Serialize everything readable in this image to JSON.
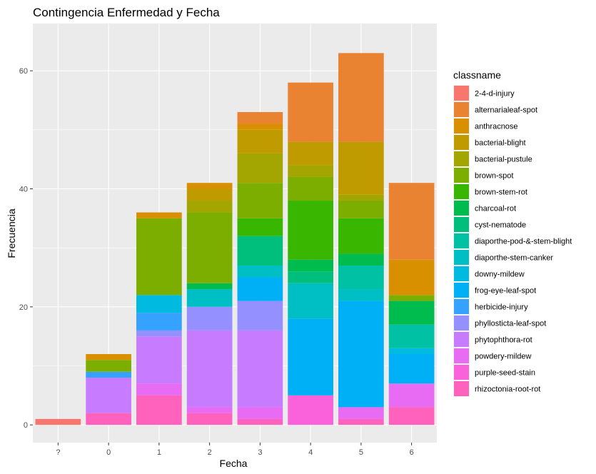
{
  "chart_data": {
    "type": "bar",
    "stacked": true,
    "title": "Contingencia Enfermedad y Fecha",
    "xlabel": "Fecha",
    "ylabel": "Frecuencia",
    "categories": [
      "?",
      "0",
      "1",
      "2",
      "3",
      "4",
      "5",
      "6"
    ],
    "yticks": [
      0,
      20,
      40,
      60
    ],
    "ylim": [
      -3,
      68
    ],
    "grid": true,
    "legend": {
      "title": "classname",
      "placement": "right"
    },
    "series": [
      {
        "name": "2-4-d-injury",
        "color": "#F8766D",
        "values": [
          1,
          0,
          0,
          0,
          0,
          0,
          0,
          0
        ]
      },
      {
        "name": "alternarialeaf-spot",
        "color": "#EA8331",
        "values": [
          0,
          0,
          0,
          0,
          2,
          10,
          15,
          13
        ]
      },
      {
        "name": "anthracnose",
        "color": "#D89000",
        "values": [
          0,
          1,
          1,
          1,
          1,
          0,
          0,
          6
        ]
      },
      {
        "name": "bacterial-blight",
        "color": "#C09B00",
        "values": [
          0,
          0,
          0,
          2,
          4,
          4,
          9,
          0
        ]
      },
      {
        "name": "bacterial-pustule",
        "color": "#A3A500",
        "values": [
          0,
          0,
          0,
          2,
          5,
          2,
          1,
          0
        ]
      },
      {
        "name": "brown-spot",
        "color": "#7CAE00",
        "values": [
          0,
          2,
          13,
          12,
          6,
          4,
          3,
          1
        ]
      },
      {
        "name": "brown-stem-rot",
        "color": "#39B600",
        "values": [
          0,
          0,
          0,
          0,
          3,
          10,
          6,
          0
        ]
      },
      {
        "name": "charcoal-rot",
        "color": "#00BB4E",
        "values": [
          0,
          0,
          0,
          1,
          0,
          2,
          2,
          4
        ]
      },
      {
        "name": "cyst-nematode",
        "color": "#00BF7D",
        "values": [
          0,
          0,
          0,
          0,
          5,
          2,
          0,
          0
        ]
      },
      {
        "name": "diaporthe-pod-&-stem-blight",
        "color": "#00C1A3",
        "values": [
          0,
          0,
          0,
          0,
          0,
          0,
          4,
          4
        ]
      },
      {
        "name": "diaporthe-stem-canker",
        "color": "#00BFC4",
        "values": [
          0,
          0,
          0,
          3,
          2,
          6,
          2,
          0
        ]
      },
      {
        "name": "downy-mildew",
        "color": "#00BAE0",
        "values": [
          0,
          0,
          3,
          0,
          0,
          0,
          0,
          1
        ]
      },
      {
        "name": "frog-eye-leaf-spot",
        "color": "#00B0F6",
        "values": [
          0,
          0,
          0,
          0,
          4,
          13,
          18,
          5
        ]
      },
      {
        "name": "herbicide-injury",
        "color": "#35A2FF",
        "values": [
          0,
          1,
          3,
          0,
          0,
          0,
          0,
          0
        ]
      },
      {
        "name": "phyllosticta-leaf-spot",
        "color": "#9590FF",
        "values": [
          0,
          0,
          1,
          4,
          5,
          0,
          0,
          0
        ]
      },
      {
        "name": "phytophthora-rot",
        "color": "#C77CFF",
        "values": [
          0,
          6,
          8,
          13,
          13,
          0,
          0,
          0
        ]
      },
      {
        "name": "powdery-mildew",
        "color": "#E76BF3",
        "values": [
          0,
          0,
          2,
          1,
          2,
          0,
          2,
          4
        ]
      },
      {
        "name": "purple-seed-stain",
        "color": "#FA62DB",
        "values": [
          0,
          0,
          0,
          0,
          0,
          5,
          0,
          0
        ]
      },
      {
        "name": "rhizoctonia-root-rot",
        "color": "#FF62BC",
        "values": [
          0,
          2,
          5,
          2,
          1,
          0,
          1,
          3
        ]
      }
    ]
  }
}
